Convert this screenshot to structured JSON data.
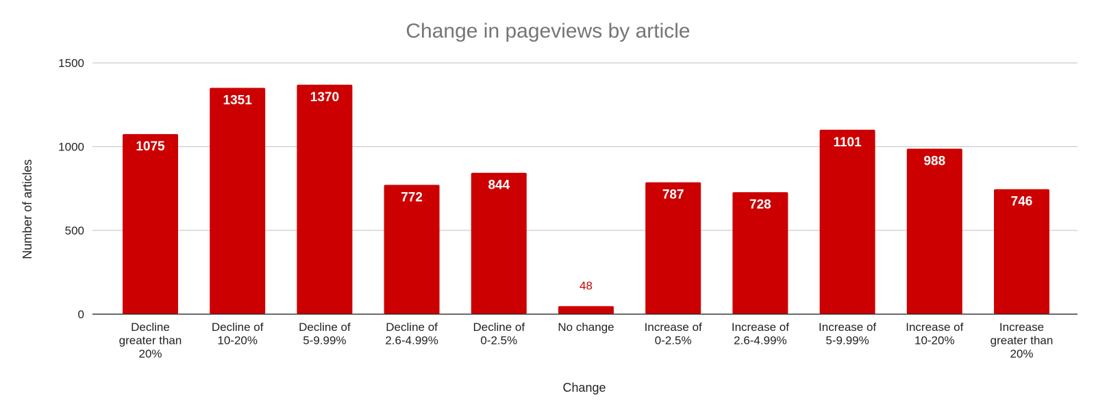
{
  "chart_data": {
    "type": "bar",
    "title": "Change in pageviews by article",
    "xlabel": "Change",
    "ylabel": "Number of articles",
    "ylim": [
      0,
      1500
    ],
    "yticks": [
      0,
      500,
      1000,
      1500
    ],
    "grid": true,
    "bar_color": "#cc0000",
    "categories": [
      [
        "Decline",
        "greater than",
        "20%"
      ],
      [
        "Decline of",
        "10-20%"
      ],
      [
        "Decline of",
        "5-9.99%"
      ],
      [
        "Decline of",
        "2.6-4.99%"
      ],
      [
        "Decline of",
        "0-2.5%"
      ],
      [
        "No change"
      ],
      [
        "Increase of",
        "0-2.5%"
      ],
      [
        "Increase of",
        "2.6-4.99%"
      ],
      [
        "Increase of",
        "5-9.99%"
      ],
      [
        "Increase of",
        "10-20%"
      ],
      [
        "Increase",
        "greater than",
        "20%"
      ]
    ],
    "values": [
      1075,
      1351,
      1370,
      772,
      844,
      48,
      787,
      728,
      1101,
      988,
      746
    ]
  }
}
